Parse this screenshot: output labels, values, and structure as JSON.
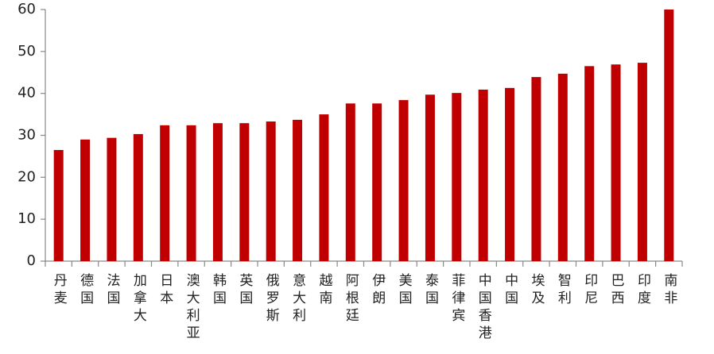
{
  "chart_data": {
    "type": "bar",
    "categories": [
      "丹麦",
      "德国",
      "法国",
      "加拿大",
      "日本",
      "澳大利亚",
      "韩国",
      "英国",
      "俄罗斯",
      "意大利",
      "越南",
      "阿根廷",
      "伊朗",
      "美国",
      "泰国",
      "菲律宾",
      "中国香港",
      "中国",
      "埃及",
      "智利",
      "印尼",
      "巴西",
      "印度",
      "南非"
    ],
    "values": [
      26.5,
      29,
      29.4,
      30.3,
      32.4,
      32.4,
      32.9,
      32.9,
      33.3,
      33.7,
      35,
      37.6,
      37.6,
      38.4,
      39.7,
      40.1,
      40.9,
      41.3,
      43.9,
      44.7,
      46.5,
      46.9,
      47.3,
      60
    ],
    "color": "#c00000",
    "ylim": [
      0,
      60
    ],
    "yticks": [
      0,
      10,
      20,
      30,
      40,
      50,
      60
    ],
    "grid": false
  }
}
